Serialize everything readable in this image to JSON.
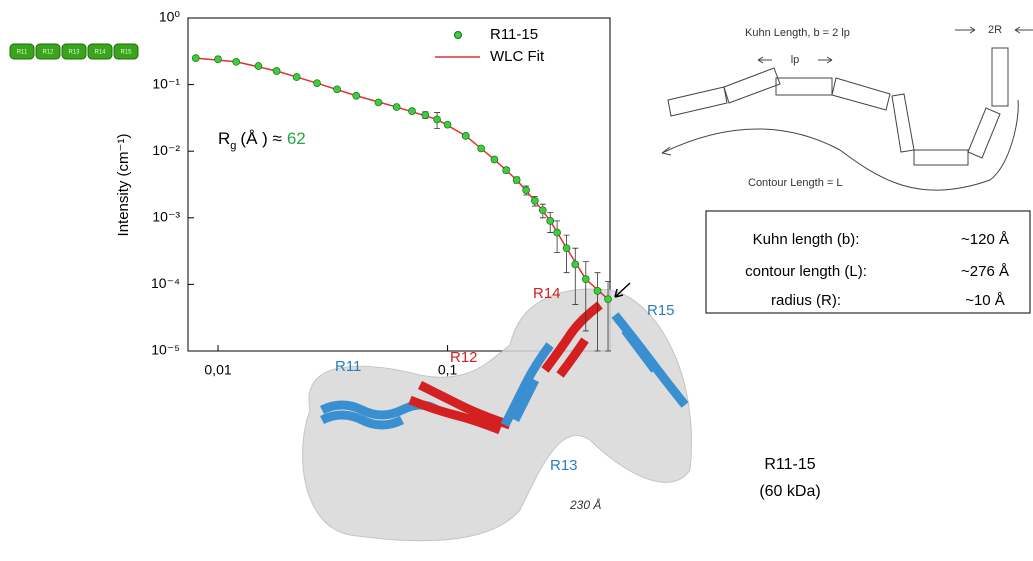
{
  "chart_data": {
    "type": "scatter",
    "log_x": true,
    "log_y": true,
    "ylabel": "Intensity (cm⁻¹)",
    "xlim": [
      0.0074,
      0.51
    ],
    "ylim": [
      1e-05,
      1
    ],
    "xticks": [
      {
        "value": 0.01,
        "label": "0,01"
      },
      {
        "value": 0.1,
        "label": "0,1"
      }
    ],
    "yticks": [
      {
        "value": 1,
        "label": "10⁰"
      },
      {
        "value": 0.1,
        "label": "10⁻¹"
      },
      {
        "value": 0.01,
        "label": "10⁻²"
      },
      {
        "value": 0.001,
        "label": "10⁻³"
      },
      {
        "value": 0.0001,
        "label": "10⁻⁴"
      },
      {
        "value": 1e-05,
        "label": "10⁻⁵"
      }
    ],
    "legend": "top-right",
    "annotation": {
      "symbol": "R",
      "subscript": "g",
      "text": "(Å ) ≈",
      "value": 62,
      "color": "#22aa44"
    },
    "series": [
      {
        "name": "R11-15",
        "color": "#3ccf3c",
        "x": [
          0.008,
          0.01,
          0.012,
          0.015,
          0.018,
          0.022,
          0.027,
          0.033,
          0.04,
          0.05,
          0.06,
          0.07,
          0.08,
          0.09,
          0.1,
          0.12,
          0.14,
          0.16,
          0.18,
          0.2,
          0.22,
          0.24,
          0.26,
          0.28,
          0.3,
          0.33,
          0.36,
          0.4,
          0.45,
          0.5
        ],
        "values": [
          0.25,
          0.24,
          0.22,
          0.19,
          0.16,
          0.13,
          0.105,
          0.085,
          0.068,
          0.054,
          0.046,
          0.04,
          0.035,
          0.03,
          0.025,
          0.017,
          0.011,
          0.0075,
          0.0052,
          0.0037,
          0.0026,
          0.0018,
          0.0013,
          0.0009,
          0.0006,
          0.00035,
          0.0002,
          0.00012,
          8e-05,
          6e-05
        ],
        "errors": [
          0.005,
          0.004,
          0.003,
          0.003,
          0.002,
          0.002,
          0.002,
          0.002,
          0.002,
          0.002,
          0.002,
          0.003,
          0.004,
          0.008,
          0.002,
          0.001,
          0.0008,
          0.0006,
          0.0005,
          0.0004,
          0.0004,
          0.0003,
          0.0003,
          0.0003,
          0.0003,
          0.0002,
          0.00015,
          0.0001,
          7e-05,
          5e-05
        ]
      },
      {
        "name": "WLC Fit",
        "color": "#e03030",
        "x": [
          0.008,
          0.012,
          0.018,
          0.027,
          0.04,
          0.06,
          0.09,
          0.12,
          0.16,
          0.2,
          0.24,
          0.28,
          0.33,
          0.4,
          0.5
        ],
        "values": [
          0.25,
          0.22,
          0.16,
          0.105,
          0.068,
          0.046,
          0.03,
          0.017,
          0.0075,
          0.0037,
          0.0018,
          0.0009,
          0.00035,
          0.00012,
          6e-05
        ]
      }
    ]
  },
  "beads": [
    "R11",
    "R12",
    "R13",
    "R14",
    "R15"
  ],
  "diagram": {
    "kuhn": "Kuhn Length, b = 2 lp",
    "lp": "lp",
    "radius": "2R",
    "contour": "Contour Length = L"
  },
  "table": {
    "rows": [
      [
        "Kuhn length (b):",
        "~120 Å"
      ],
      [
        "contour length (L):",
        "~276 Å"
      ],
      [
        "radius (R):",
        "~10 Å"
      ]
    ]
  },
  "structure": {
    "domains": [
      "R11",
      "R12",
      "R13",
      "R14",
      "R15"
    ],
    "length": "230 Å",
    "name": "R11-15",
    "mass": "(60 kDa)"
  }
}
